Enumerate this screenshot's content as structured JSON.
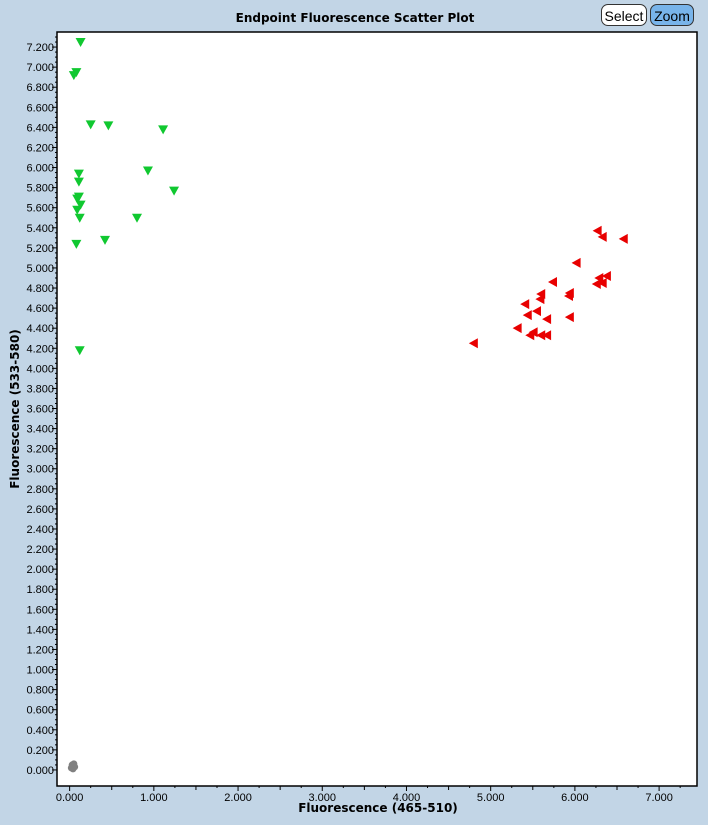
{
  "toolbar": {
    "select_label": "Select",
    "zoom_label": "Zoom",
    "active": "Zoom"
  },
  "chart_data": {
    "type": "scatter",
    "title": "Endpoint Fluorescence Scatter Plot",
    "xlabel": "Fluorescence (465-510)",
    "ylabel": "Fluorescence (533-580)",
    "xlim": [
      -0.15,
      7.45
    ],
    "ylim": [
      -0.16,
      7.35
    ],
    "xticks": [
      "0.000",
      "1.000",
      "2.000",
      "3.000",
      "4.000",
      "5.000",
      "6.000",
      "7.000"
    ],
    "yticks": [
      "0.000",
      "0.200",
      "0.400",
      "0.600",
      "0.800",
      "1.000",
      "1.200",
      "1.400",
      "1.600",
      "1.800",
      "2.000",
      "2.200",
      "2.400",
      "2.600",
      "2.800",
      "3.000",
      "3.200",
      "3.400",
      "3.600",
      "3.800",
      "4.000",
      "4.200",
      "4.400",
      "4.600",
      "4.800",
      "5.000",
      "5.200",
      "5.400",
      "5.600",
      "5.800",
      "6.000",
      "6.200",
      "6.400",
      "6.600",
      "6.800",
      "7.000",
      "7.200"
    ],
    "grid": false,
    "series": [
      {
        "color": "#10c830",
        "marker": "triangle-down",
        "points": [
          [
            0.13,
            7.25
          ],
          [
            0.08,
            6.95
          ],
          [
            0.05,
            6.92
          ],
          [
            0.25,
            6.43
          ],
          [
            0.46,
            6.42
          ],
          [
            1.11,
            6.38
          ],
          [
            0.93,
            5.97
          ],
          [
            0.11,
            5.94
          ],
          [
            0.11,
            5.86
          ],
          [
            1.24,
            5.77
          ],
          [
            0.11,
            5.71
          ],
          [
            0.09,
            5.69
          ],
          [
            0.13,
            5.63
          ],
          [
            0.09,
            5.58
          ],
          [
            0.12,
            5.5
          ],
          [
            0.8,
            5.5
          ],
          [
            0.42,
            5.28
          ],
          [
            0.08,
            5.24
          ],
          [
            0.12,
            4.18
          ]
        ]
      },
      {
        "color": "#e80000",
        "marker": "triangle-left",
        "points": [
          [
            6.27,
            5.37
          ],
          [
            6.33,
            5.31
          ],
          [
            6.58,
            5.29
          ],
          [
            6.02,
            5.05
          ],
          [
            6.38,
            4.92
          ],
          [
            6.29,
            4.9
          ],
          [
            6.33,
            4.85
          ],
          [
            6.26,
            4.84
          ],
          [
            5.74,
            4.86
          ],
          [
            5.6,
            4.74
          ],
          [
            5.94,
            4.75
          ],
          [
            5.93,
            4.72
          ],
          [
            5.59,
            4.69
          ],
          [
            5.41,
            4.64
          ],
          [
            5.44,
            4.53
          ],
          [
            5.55,
            4.57
          ],
          [
            5.67,
            4.49
          ],
          [
            5.94,
            4.51
          ],
          [
            5.32,
            4.4
          ],
          [
            5.51,
            4.36
          ],
          [
            5.47,
            4.33
          ],
          [
            5.6,
            4.33
          ],
          [
            5.67,
            4.33
          ],
          [
            4.8,
            4.25
          ]
        ]
      },
      {
        "color": "#808080",
        "marker": "circle",
        "points": [
          [
            0.03,
            0.03
          ],
          [
            0.05,
            0.04
          ],
          [
            0.04,
            0.01
          ],
          [
            0.06,
            0.03
          ],
          [
            0.02,
            0.02
          ],
          [
            0.05,
            0.06
          ],
          [
            0.03,
            0.05
          ]
        ]
      }
    ]
  }
}
